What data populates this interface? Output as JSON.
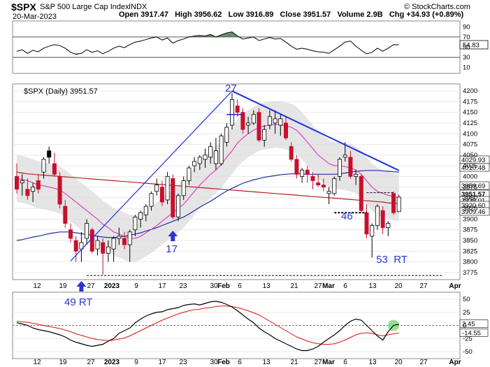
{
  "header": {
    "symbol": "$SPX",
    "name": "S&P 500 Large Cap Index",
    "exchange": "INDX",
    "date": "20-Mar-2023",
    "ohlc_line": "Open 3917.47   High 3956.62   Low 3916.89   Close 3951.57   Volume 2.9B   Chg +34.93 (+0.89%)",
    "brand": "© StockCharts.com"
  },
  "rsi_pane": {
    "ticks": [
      "90",
      "70",
      "50",
      "30",
      "10"
    ],
    "value_tag": "54.83"
  },
  "price_pane": {
    "legend": "$SPX (Daily) 3951.57",
    "ticks": [
      "4200",
      "4175",
      "4150",
      "4125",
      "4100",
      "4075",
      "4050",
      "4025",
      "4000",
      "3975",
      "3950",
      "3925",
      "3900",
      "3875",
      "3850",
      "3825",
      "3800",
      "3775"
    ],
    "value_tags": [
      "4029.93",
      "4010.48",
      "3959.69",
      "3951.57",
      "3936.01",
      "3920.60",
      "3909.46"
    ]
  },
  "macd_pane": {
    "ticks": [
      "50",
      "25",
      "0",
      "-25",
      "-50"
    ],
    "value_tags": [
      "2.45",
      "-14.55"
    ]
  },
  "x_axis": {
    "labels": [
      "12",
      "19",
      "27",
      "2023",
      "9",
      "17",
      "23",
      "30",
      "Feb",
      "6",
      "13",
      "21",
      "27",
      "Mar",
      "6",
      "13",
      "20",
      "27",
      "Apr"
    ]
  },
  "annotations": {
    "a27": "27",
    "a17": "17",
    "a49": "49 RT",
    "a46": "46",
    "a53": "53  RT"
  },
  "colors": {
    "up": "#ffffff",
    "down": "#c8102e",
    "neutral": "#000000",
    "sma20": "#e040c8",
    "sma50": "#1f2fa0",
    "sma200": "#b22222",
    "trendline": "#2030e0",
    "band": "#dcdcdc",
    "rsi_over": "#4f7a4f",
    "rsi_under": "#8b4a4a",
    "macd": "#000000",
    "signal": "#e01010",
    "highlight": "#7cd67c"
  },
  "chart_data": [
    {
      "type": "candlestick",
      "title": "$SPX (Daily) 3951.57",
      "ylim": [
        3760,
        4215
      ],
      "y_ticks": [
        3775,
        3800,
        3825,
        3850,
        3875,
        3900,
        3925,
        3950,
        3975,
        4000,
        4025,
        4050,
        4075,
        4100,
        4125,
        4150,
        4175,
        4200
      ],
      "candles": [
        {
          "o": 4000,
          "h": 4030,
          "l": 3960,
          "c": 3970,
          "col": "down"
        },
        {
          "o": 3985,
          "h": 4005,
          "l": 3955,
          "c": 3990,
          "col": "up"
        },
        {
          "o": 3970,
          "h": 3995,
          "l": 3945,
          "c": 3955,
          "col": "down"
        },
        {
          "o": 3965,
          "h": 3985,
          "l": 3940,
          "c": 3975,
          "col": "up"
        },
        {
          "o": 3990,
          "h": 4005,
          "l": 3960,
          "c": 3970,
          "col": "down"
        },
        {
          "o": 4010,
          "h": 4045,
          "l": 3995,
          "c": 4040,
          "col": "up"
        },
        {
          "o": 4045,
          "h": 4070,
          "l": 4030,
          "c": 4060,
          "col": "neutral"
        },
        {
          "o": 4030,
          "h": 4055,
          "l": 4000,
          "c": 4005,
          "col": "down"
        },
        {
          "o": 4000,
          "h": 4010,
          "l": 3925,
          "c": 3935,
          "col": "down"
        },
        {
          "o": 3930,
          "h": 3945,
          "l": 3880,
          "c": 3890,
          "col": "down"
        },
        {
          "o": 3875,
          "h": 3890,
          "l": 3845,
          "c": 3855,
          "col": "down"
        },
        {
          "o": 3850,
          "h": 3860,
          "l": 3800,
          "c": 3825,
          "col": "down"
        },
        {
          "o": 3830,
          "h": 3870,
          "l": 3800,
          "c": 3845,
          "col": "up"
        },
        {
          "o": 3855,
          "h": 3900,
          "l": 3840,
          "c": 3890,
          "col": "up"
        },
        {
          "o": 3875,
          "h": 3880,
          "l": 3820,
          "c": 3825,
          "col": "down"
        },
        {
          "o": 3830,
          "h": 3860,
          "l": 3815,
          "c": 3850,
          "col": "up"
        },
        {
          "o": 3845,
          "h": 3855,
          "l": 3770,
          "c": 3820,
          "col": "down"
        },
        {
          "o": 3820,
          "h": 3850,
          "l": 3800,
          "c": 3835,
          "col": "up"
        },
        {
          "o": 3830,
          "h": 3860,
          "l": 3800,
          "c": 3855,
          "col": "up"
        },
        {
          "o": 3855,
          "h": 3880,
          "l": 3840,
          "c": 3860,
          "col": "up"
        },
        {
          "o": 3855,
          "h": 3870,
          "l": 3830,
          "c": 3840,
          "col": "down"
        },
        {
          "o": 3840,
          "h": 3875,
          "l": 3800,
          "c": 3870,
          "col": "up"
        },
        {
          "o": 3875,
          "h": 3910,
          "l": 3860,
          "c": 3905,
          "col": "up"
        },
        {
          "o": 3900,
          "h": 3920,
          "l": 3880,
          "c": 3915,
          "col": "up"
        },
        {
          "o": 3910,
          "h": 3935,
          "l": 3895,
          "c": 3930,
          "col": "up"
        },
        {
          "o": 3930,
          "h": 3965,
          "l": 3920,
          "c": 3960,
          "col": "up"
        },
        {
          "o": 3965,
          "h": 3995,
          "l": 3955,
          "c": 3980,
          "col": "up"
        },
        {
          "o": 3975,
          "h": 3990,
          "l": 3930,
          "c": 3940,
          "col": "down"
        },
        {
          "o": 3945,
          "h": 4010,
          "l": 3935,
          "c": 4000,
          "col": "up"
        },
        {
          "o": 3995,
          "h": 4005,
          "l": 3900,
          "c": 3905,
          "col": "down"
        },
        {
          "o": 3905,
          "h": 3960,
          "l": 3895,
          "c": 3955,
          "col": "up"
        },
        {
          "o": 3955,
          "h": 4000,
          "l": 3945,
          "c": 3990,
          "col": "up"
        },
        {
          "o": 3990,
          "h": 4025,
          "l": 3980,
          "c": 4020,
          "col": "up"
        },
        {
          "o": 4025,
          "h": 4045,
          "l": 4010,
          "c": 4035,
          "col": "up"
        },
        {
          "o": 4030,
          "h": 4050,
          "l": 4015,
          "c": 4045,
          "col": "up"
        },
        {
          "o": 4040,
          "h": 4065,
          "l": 4020,
          "c": 4050,
          "col": "up"
        },
        {
          "o": 4045,
          "h": 4080,
          "l": 4030,
          "c": 4070,
          "col": "up"
        },
        {
          "o": 4060,
          "h": 4090,
          "l": 4015,
          "c": 4030,
          "col": "up"
        },
        {
          "o": 4030,
          "h": 4100,
          "l": 4025,
          "c": 4095,
          "col": "up"
        },
        {
          "o": 4080,
          "h": 4125,
          "l": 4070,
          "c": 4115,
          "col": "up"
        },
        {
          "o": 4120,
          "h": 4195,
          "l": 4110,
          "c": 4180,
          "col": "up"
        },
        {
          "o": 4165,
          "h": 4180,
          "l": 4140,
          "c": 4150,
          "col": "down"
        },
        {
          "o": 4150,
          "h": 4160,
          "l": 4100,
          "c": 4110,
          "col": "down"
        },
        {
          "o": 4120,
          "h": 4140,
          "l": 4100,
          "c": 4125,
          "col": "up"
        },
        {
          "o": 4125,
          "h": 4155,
          "l": 4120,
          "c": 4145,
          "col": "up"
        },
        {
          "o": 4150,
          "h": 4160,
          "l": 4080,
          "c": 4085,
          "col": "down"
        },
        {
          "o": 4085,
          "h": 4120,
          "l": 4070,
          "c": 4110,
          "col": "up"
        },
        {
          "o": 4120,
          "h": 4155,
          "l": 4110,
          "c": 4140,
          "col": "up"
        },
        {
          "o": 4135,
          "h": 4155,
          "l": 4100,
          "c": 4125,
          "col": "up"
        },
        {
          "o": 4120,
          "h": 4145,
          "l": 4095,
          "c": 4135,
          "col": "up"
        },
        {
          "o": 4125,
          "h": 4140,
          "l": 4085,
          "c": 4090,
          "col": "down"
        },
        {
          "o": 4070,
          "h": 4080,
          "l": 4035,
          "c": 4040,
          "col": "down"
        },
        {
          "o": 4040,
          "h": 4050,
          "l": 3995,
          "c": 4005,
          "col": "down"
        },
        {
          "o": 4000,
          "h": 4020,
          "l": 3985,
          "c": 4015,
          "col": "up"
        },
        {
          "o": 4015,
          "h": 4025,
          "l": 3985,
          "c": 4005,
          "col": "down"
        },
        {
          "o": 4000,
          "h": 4010,
          "l": 3970,
          "c": 3990,
          "col": "down"
        },
        {
          "o": 3985,
          "h": 4005,
          "l": 3975,
          "c": 3980,
          "col": "down"
        },
        {
          "o": 3980,
          "h": 3995,
          "l": 3965,
          "c": 3975,
          "col": "down"
        },
        {
          "o": 3960,
          "h": 3975,
          "l": 3935,
          "c": 3965,
          "col": "up"
        },
        {
          "o": 3960,
          "h": 4000,
          "l": 3955,
          "c": 3995,
          "col": "up"
        },
        {
          "o": 4000,
          "h": 4045,
          "l": 3990,
          "c": 4040,
          "col": "up"
        },
        {
          "o": 4045,
          "h": 4080,
          "l": 4035,
          "c": 4050,
          "col": "up"
        },
        {
          "o": 4045,
          "h": 4060,
          "l": 3995,
          "c": 4000,
          "col": "down"
        },
        {
          "o": 4000,
          "h": 4015,
          "l": 3980,
          "c": 4005,
          "col": "up"
        },
        {
          "o": 4000,
          "h": 4005,
          "l": 3915,
          "c": 3920,
          "col": "down"
        },
        {
          "o": 3915,
          "h": 3935,
          "l": 3855,
          "c": 3865,
          "col": "down"
        },
        {
          "o": 3860,
          "h": 3890,
          "l": 3810,
          "c": 3885,
          "col": "up"
        },
        {
          "o": 3885,
          "h": 3935,
          "l": 3875,
          "c": 3930,
          "col": "up"
        },
        {
          "o": 3920,
          "h": 3930,
          "l": 3865,
          "c": 3880,
          "col": "down"
        },
        {
          "o": 3880,
          "h": 3895,
          "l": 3860,
          "c": 3890,
          "col": "up"
        },
        {
          "o": 3960,
          "h": 3965,
          "l": 3910,
          "c": 3915,
          "col": "down"
        },
        {
          "o": 3917.47,
          "h": 3956.62,
          "l": 3916.89,
          "c": 3951.57,
          "col": "up"
        }
      ],
      "annotation_levels": {
        "low_line": 3768,
        "rt46_level": 3915,
        "mid_line": 3962,
        "label_27": 4200,
        "label_17": 3860,
        "label_46": 3890,
        "label_53": 3810
      },
      "sma20": [
        3995,
        3993,
        3990,
        3985,
        3980,
        3978,
        3975,
        3972,
        3968,
        3960,
        3950,
        3940,
        3930,
        3920,
        3910,
        3900,
        3888,
        3880,
        3870,
        3865,
        3860,
        3855,
        3855,
        3860,
        3868,
        3876,
        3885,
        3895,
        3905,
        3915,
        3925,
        3935,
        3950,
        3965,
        3980,
        3992,
        4005,
        4015,
        4028,
        4045,
        4060,
        4078,
        4090,
        4100,
        4108,
        4115,
        4118,
        4120,
        4122,
        4121,
        4118,
        4115,
        4108,
        4095,
        4080,
        4065,
        4050,
        4040,
        4030,
        4025,
        4025,
        4023,
        4020,
        4015,
        4005,
        3990,
        3975,
        3965,
        3960,
        3956,
        3952,
        3950
      ],
      "sma50": [
        3850,
        3852,
        3855,
        3858,
        3860,
        3863,
        3866,
        3868,
        3870,
        3870,
        3870,
        3868,
        3866,
        3864,
        3862,
        3860,
        3858,
        3857,
        3857,
        3858,
        3860,
        3862,
        3865,
        3868,
        3872,
        3876,
        3880,
        3885,
        3890,
        3895,
        3900,
        3905,
        3912,
        3920,
        3928,
        3935,
        3942,
        3950,
        3958,
        3966,
        3972,
        3978,
        3984,
        3988,
        3992,
        3995,
        3998,
        4000,
        4002,
        4004,
        4005,
        4006,
        4006,
        4006,
        4005,
        4005,
        4005,
        4005,
        4005,
        4005,
        4006,
        4008,
        4010,
        4012,
        4013,
        4014,
        4014,
        4014,
        4013,
        4012,
        4011,
        4010
      ],
      "sma200": [
        4010,
        4008,
        4006,
        4005,
        4004,
        4003,
        4002,
        4001,
        4000,
        3999,
        3998,
        3997,
        3996,
        3995,
        3994,
        3993,
        3992,
        3991,
        3990,
        3989,
        3988,
        3987,
        3986,
        3985,
        3984,
        3983,
        3982,
        3981,
        3980,
        3979,
        3978,
        3977,
        3976,
        3975,
        3974,
        3973,
        3972,
        3971,
        3970,
        3969,
        3968,
        3967,
        3966,
        3965,
        3964,
        3963,
        3962,
        3961,
        3960,
        3959,
        3958,
        3957,
        3956,
        3955,
        3954,
        3953,
        3952,
        3951,
        3950,
        3949,
        3948,
        3947,
        3946,
        3945,
        3944,
        3943,
        3942,
        3941,
        3940,
        3938,
        3937,
        3936
      ],
      "trendlines": [
        {
          "from": [
            10,
            3802
          ],
          "to": [
            40,
            4200
          ],
          "color": "trendline"
        },
        {
          "from": [
            40,
            4200
          ],
          "to": [
            71,
            4014
          ],
          "color": "trendline"
        }
      ]
    },
    {
      "type": "line",
      "title": "RSI",
      "ylim": [
        0,
        100
      ],
      "y_ticks": [
        10,
        30,
        50,
        70,
        90
      ],
      "values": [
        42,
        45,
        38,
        44,
        41,
        48,
        52,
        55,
        53,
        48,
        40,
        36,
        38,
        45,
        40,
        43,
        37,
        42,
        48,
        52,
        49,
        55,
        60,
        62,
        65,
        68,
        70,
        64,
        68,
        58,
        63,
        66,
        70,
        72,
        73,
        72,
        75,
        70,
        74,
        78,
        80,
        72,
        66,
        68,
        70,
        63,
        66,
        69,
        66,
        67,
        60,
        52,
        46,
        48,
        46,
        43,
        41,
        40,
        38,
        45,
        52,
        60,
        62,
        52,
        44,
        37,
        40,
        48,
        42,
        48,
        55,
        54.83
      ]
    },
    {
      "type": "line",
      "title": "MACD",
      "ylim": [
        -62,
        62
      ],
      "y_ticks": [
        -50,
        -25,
        0,
        25,
        50
      ],
      "macd": [
        5,
        3,
        0,
        -5,
        -8,
        -10,
        -12,
        -15,
        -18,
        -22,
        -28,
        -32,
        -35,
        -38,
        -40,
        -38,
        -36,
        -30,
        -25,
        -15,
        -10,
        -5,
        5,
        12,
        18,
        22,
        25,
        26,
        30,
        32,
        34,
        38,
        40,
        41,
        39,
        42,
        45,
        46,
        44,
        40,
        35,
        28,
        20,
        12,
        5,
        -5,
        -12,
        -18,
        -25,
        -30,
        -35,
        -40,
        -45,
        -48,
        -48,
        -45,
        -40,
        -32,
        -25,
        -18,
        -10,
        0,
        8,
        12,
        10,
        0,
        -10,
        -20,
        -28,
        -12,
        0,
        2.45
      ],
      "signal": [
        8,
        7,
        6,
        4,
        2,
        0,
        -2,
        -4,
        -6,
        -9,
        -12,
        -16,
        -19,
        -22,
        -25,
        -27,
        -28,
        -29,
        -28,
        -26,
        -24,
        -20,
        -15,
        -10,
        -5,
        0,
        5,
        10,
        14,
        18,
        22,
        25,
        28,
        30,
        31,
        33,
        34,
        36,
        37,
        37,
        36,
        34,
        31,
        28,
        24,
        20,
        14,
        8,
        2,
        -4,
        -10,
        -16,
        -22,
        -26,
        -30,
        -33,
        -35,
        -36,
        -36,
        -35,
        -32,
        -28,
        -23,
        -18,
        -15,
        -14,
        -15,
        -18,
        -20,
        -18,
        -16,
        -14.55
      ]
    }
  ]
}
